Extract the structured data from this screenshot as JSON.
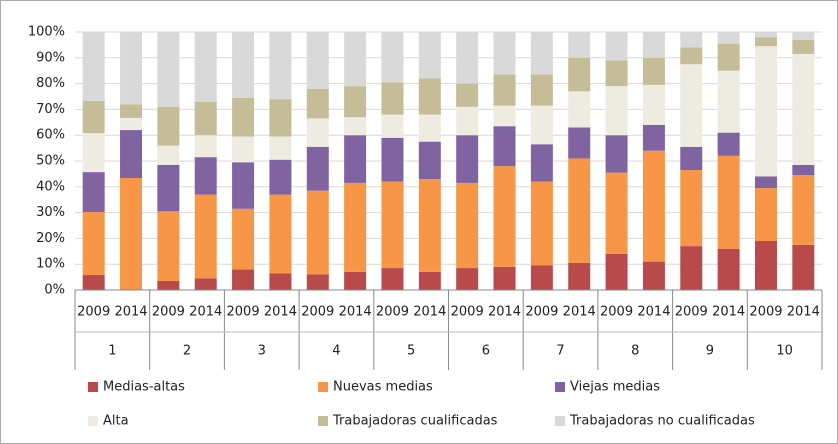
{
  "chart_data": {
    "type": "stacked_bar",
    "categories": [
      "2009",
      "2014",
      "2009",
      "2014",
      "2009",
      "2014",
      "2009",
      "2014",
      "2009",
      "2014",
      "2009",
      "2014",
      "2009",
      "2014",
      "2009",
      "2014",
      "2009",
      "2014",
      "2009",
      "2014"
    ],
    "groups": [
      "1",
      "2",
      "3",
      "4",
      "5",
      "6",
      "7",
      "8",
      "9",
      "10"
    ],
    "series": [
      {
        "name": "Medias-altas",
        "color": "#b84a4b",
        "values": [
          5.8,
          0,
          3.5,
          4.5,
          8,
          6.5,
          6,
          7,
          8.5,
          7,
          8.5,
          9,
          9.5,
          10.5,
          14,
          11,
          17,
          16,
          19,
          17.5
        ]
      },
      {
        "name": "Nuevas medias",
        "color": "#f79646",
        "values": [
          24.4,
          43.4,
          27,
          32.5,
          23.5,
          30.5,
          32.5,
          34.5,
          33.5,
          36,
          33,
          39,
          32.5,
          40.5,
          31.5,
          43,
          29.5,
          36,
          20.5,
          27
        ]
      },
      {
        "name": "Viejas medias",
        "color": "#8064a2",
        "values": [
          15.5,
          18.6,
          18,
          14.5,
          18,
          13.5,
          17,
          18.5,
          17,
          14.5,
          18.5,
          15.5,
          14.5,
          12,
          14.5,
          10,
          9,
          9,
          4.5,
          4
        ]
      },
      {
        "name": "Alta",
        "color": "#eeece1",
        "values": [
          15.1,
          4.7,
          7.5,
          8.5,
          10,
          9,
          11,
          7,
          9,
          10.5,
          11,
          8,
          15,
          14,
          19,
          15.5,
          32,
          24,
          50.5,
          43
        ]
      },
      {
        "name": "Trabajadoras cualificadas",
        "color": "#c4bd97",
        "values": [
          12.5,
          5.3,
          15,
          13,
          15,
          14.5,
          11.5,
          12,
          12.5,
          14,
          9,
          12,
          12,
          13,
          10,
          10.5,
          6.5,
          10.5,
          3.5,
          5.5
        ]
      },
      {
        "name": "Trabajadoras no cualificadas",
        "color": "#d9d9d9",
        "values": [
          26.7,
          28,
          29,
          27,
          25.5,
          26,
          22,
          21,
          19.5,
          18,
          20,
          16.5,
          16.5,
          10,
          11,
          10,
          6,
          4.5,
          2,
          3
        ]
      }
    ],
    "ylim": [
      0,
      100
    ],
    "yticks": [
      {
        "value": 0,
        "label": "0%"
      },
      {
        "value": 10,
        "label": "10%"
      },
      {
        "value": 20,
        "label": "20%"
      },
      {
        "value": 30,
        "label": "30%"
      },
      {
        "value": 40,
        "label": "40%"
      },
      {
        "value": 50,
        "label": "50%"
      },
      {
        "value": 60,
        "label": "60%"
      },
      {
        "value": 70,
        "label": "70%"
      },
      {
        "value": 80,
        "label": "80%"
      },
      {
        "value": 90,
        "label": "90%"
      },
      {
        "value": 100,
        "label": "100%"
      }
    ],
    "grid": true,
    "legend": "bottom"
  }
}
